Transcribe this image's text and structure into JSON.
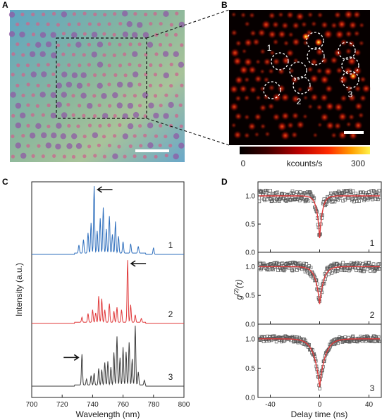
{
  "panels": {
    "a": {
      "label": "A"
    },
    "b": {
      "label": "B",
      "circle_labels": [
        "1",
        "2",
        "3"
      ]
    },
    "c": {
      "label": "C"
    },
    "d": {
      "label": "D"
    }
  },
  "colorbar": {
    "min": "0",
    "unit": "kcounts/s",
    "max": "300",
    "colors": [
      "#000000",
      "#3a0000",
      "#b80000",
      "#ff2a00",
      "#ffa000",
      "#fff24a"
    ]
  },
  "chart_data": [
    {
      "type": "line",
      "panel": "C",
      "xlabel": "Wavelength (nm)",
      "ylabel": "Intensity (a.u.)",
      "xlim": [
        700,
        800
      ],
      "xticks": [
        "700",
        "720",
        "740",
        "760",
        "780",
        "800"
      ],
      "series": [
        {
          "name": "1",
          "color": "#2f6fbd",
          "arrow_at": 741,
          "peaks": [
            [
              731,
              0.12
            ],
            [
              734,
              0.2
            ],
            [
              737,
              0.3
            ],
            [
              739,
              0.45
            ],
            [
              741,
              1.0
            ],
            [
              743,
              0.33
            ],
            [
              745,
              0.52
            ],
            [
              747,
              0.68
            ],
            [
              749,
              0.36
            ],
            [
              751,
              0.55
            ],
            [
              753,
              0.28
            ],
            [
              755,
              0.47
            ],
            [
              757,
              0.25
            ],
            [
              760,
              0.17
            ],
            [
              765,
              0.14
            ],
            [
              770,
              0.1
            ],
            [
              780,
              0.1
            ]
          ]
        },
        {
          "name": "2",
          "color": "#e0393a",
          "arrow_at": 763,
          "peaks": [
            [
              733,
              0.08
            ],
            [
              737,
              0.14
            ],
            [
              740,
              0.2
            ],
            [
              742,
              0.15
            ],
            [
              744,
              0.42
            ],
            [
              746,
              0.38
            ],
            [
              748,
              0.2
            ],
            [
              751,
              0.3
            ],
            [
              754,
              0.18
            ],
            [
              756,
              0.24
            ],
            [
              759,
              0.2
            ],
            [
              763,
              1.0
            ],
            [
              765,
              0.28
            ],
            [
              768,
              0.12
            ],
            [
              772,
              0.06
            ]
          ]
        },
        {
          "name": "3",
          "color": "#3a3a3a",
          "arrow_at": 733,
          "peaks": [
            [
              733,
              0.52
            ],
            [
              736,
              0.1
            ],
            [
              739,
              0.16
            ],
            [
              741,
              0.2
            ],
            [
              744,
              0.28
            ],
            [
              746,
              0.26
            ],
            [
              748,
              0.38
            ],
            [
              750,
              0.4
            ],
            [
              752,
              0.3
            ],
            [
              754,
              0.55
            ],
            [
              756,
              0.82
            ],
            [
              758,
              0.46
            ],
            [
              760,
              0.64
            ],
            [
              762,
              0.56
            ],
            [
              764,
              0.72
            ],
            [
              766,
              0.44
            ],
            [
              768,
              1.0
            ],
            [
              770,
              0.22
            ],
            [
              774,
              0.08
            ]
          ]
        }
      ]
    },
    {
      "type": "scatter",
      "panel": "D",
      "xlabel": "Delay time (ns)",
      "ylabel_main": "g",
      "ylabel_sup": "(2)",
      "ylabel_tail": "(τ)",
      "xlim": [
        -50,
        50
      ],
      "ylim": [
        0,
        1.25
      ],
      "xticks": [
        "-40",
        "0",
        "40"
      ],
      "yticks": [
        "0.0",
        "0.5",
        "1.0"
      ],
      "series": [
        {
          "name": "1",
          "g2_zero": 0.25,
          "decay_ns": 2.3,
          "noise": 0.1
        },
        {
          "name": "2",
          "g2_zero": 0.35,
          "decay_ns": 3.3,
          "noise": 0.08
        },
        {
          "name": "3",
          "g2_zero": 0.18,
          "decay_ns": 4.5,
          "noise": 0.05
        }
      ]
    }
  ]
}
